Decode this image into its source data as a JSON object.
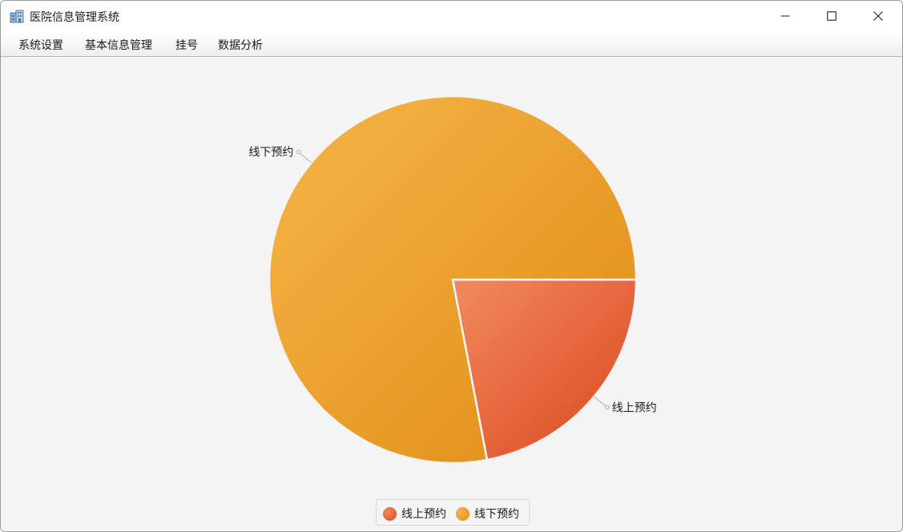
{
  "window": {
    "title": "医院信息管理系统",
    "icon": "hospital-building-icon"
  },
  "menu": {
    "items": [
      "系统设置",
      "基本信息管理",
      "挂号",
      "数据分析"
    ]
  },
  "colors": {
    "online": "#e2582b",
    "offline": "#e9a02c"
  },
  "chart_data": {
    "type": "pie",
    "slices": [
      {
        "label": "线上预约",
        "value": 22,
        "color": "#e2582b"
      },
      {
        "label": "线下预约",
        "value": 78,
        "color": "#e9a02c"
      }
    ],
    "legend": [
      "线上预约",
      "线下预约"
    ],
    "legend_placement": "bottom"
  }
}
